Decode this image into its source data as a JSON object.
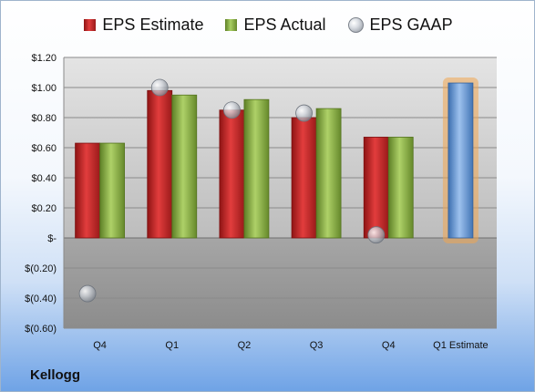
{
  "company": "Kellogg",
  "chart_data": {
    "type": "bar",
    "categories": [
      "Q4",
      "Q1",
      "Q2",
      "Q3",
      "Q4",
      "Q1 Estimate"
    ],
    "series": [
      {
        "name": "EPS Estimate",
        "values": [
          0.63,
          0.98,
          0.85,
          0.8,
          0.67,
          1.03
        ],
        "color": "#d42a2a"
      },
      {
        "name": "EPS Actual",
        "values": [
          0.63,
          0.95,
          0.92,
          0.86,
          0.67,
          null
        ],
        "color": "#8fb84a"
      },
      {
        "name": "EPS GAAP",
        "values": [
          -0.37,
          1.0,
          0.85,
          0.83,
          0.02,
          null
        ],
        "color": "#b8bec7"
      }
    ],
    "highlight_color": "#7aa6dc",
    "highlight_glow": "#f0a650",
    "ylim": [
      -0.6,
      1.2
    ],
    "yticks": [
      -0.6,
      -0.4,
      -0.2,
      0,
      0.2,
      0.4,
      0.6,
      0.8,
      1.0,
      1.2
    ],
    "ytick_labels": [
      "$(0.60)",
      "$(0.40)",
      "$(0.20)",
      "$-",
      "$0.20",
      "$0.40",
      "$0.60",
      "$0.80",
      "$1.00",
      "$1.20"
    ],
    "legend": "top",
    "grid": true
  }
}
